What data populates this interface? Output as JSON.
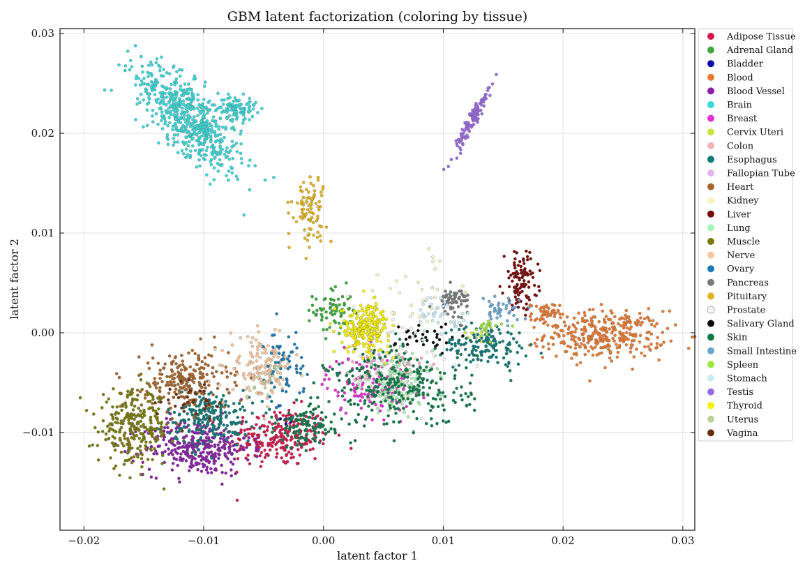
{
  "chart_data": {
    "type": "scatter",
    "title": "GBM latent factorization (coloring by tissue)",
    "xlabel": "latent factor 1",
    "ylabel": "latent factor 2",
    "xlim": [
      -0.022,
      0.031
    ],
    "ylim": [
      -0.0198,
      0.0305
    ],
    "xticks": [
      -0.02,
      -0.01,
      0.0,
      0.01,
      0.02,
      0.03
    ],
    "xtick_labels": [
      "−0.02",
      "−0.01",
      "0.00",
      "0.01",
      "0.02",
      "0.03"
    ],
    "yticks": [
      -0.01,
      0.0,
      0.01,
      0.02,
      0.03
    ],
    "ytick_labels": [
      "−0.01",
      "0.00",
      "0.01",
      "0.02",
      "0.03"
    ],
    "grid": true,
    "legend_position": "outside-right-top",
    "series": [
      {
        "name": "Adipose Tissue",
        "color": "#d6174b",
        "clusters": [
          {
            "cx": -0.0038,
            "cy": -0.0105,
            "sx": 0.0022,
            "sy": 0.0015,
            "n": 240
          }
        ]
      },
      {
        "name": "Adrenal Gland",
        "color": "#3aaa3a",
        "clusters": [
          {
            "cx": 0.0008,
            "cy": 0.0022,
            "sx": 0.0008,
            "sy": 0.0012,
            "n": 70
          }
        ]
      },
      {
        "name": "Bladder",
        "color": "#0a0aa8",
        "clusters": [
          {
            "cx": -0.0032,
            "cy": -0.0082,
            "sx": 0.0006,
            "sy": 0.0006,
            "n": 6
          }
        ]
      },
      {
        "name": "Blood",
        "color": "#e87a30",
        "clusters": [
          {
            "cx": 0.0235,
            "cy": -0.0002,
            "sx": 0.0025,
            "sy": 0.0012,
            "n": 330
          },
          {
            "cx": 0.0185,
            "cy": 0.0018,
            "sx": 0.0006,
            "sy": 0.0006,
            "n": 50
          }
        ]
      },
      {
        "name": "Blood Vessel",
        "color": "#8a1fa8",
        "clusters": [
          {
            "cx": -0.0105,
            "cy": -0.0115,
            "sx": 0.0022,
            "sy": 0.0014,
            "n": 330
          }
        ]
      },
      {
        "name": "Brain",
        "color": "#3ad8d8",
        "clusters": [
          {
            "cx": -0.0112,
            "cy": 0.0215,
            "sx": 0.0022,
            "sy": 0.0028,
            "n": 600,
            "rho": -0.75
          },
          {
            "cx": -0.0072,
            "cy": 0.0225,
            "sx": 0.0008,
            "sy": 0.0006,
            "n": 90
          }
        ]
      },
      {
        "name": "Breast",
        "color": "#e530d6",
        "clusters": [
          {
            "cx": 0.0038,
            "cy": -0.0052,
            "sx": 0.0018,
            "sy": 0.0015,
            "n": 130
          }
        ]
      },
      {
        "name": "Cervix Uteri",
        "color": "#c8e63a",
        "clusters": [
          {
            "cx": 0.0128,
            "cy": -0.0002,
            "sx": 0.0008,
            "sy": 0.0006,
            "n": 10
          }
        ]
      },
      {
        "name": "Colon",
        "color": "#f2b4bc",
        "clusters": [
          {
            "cx": 0.0055,
            "cy": -0.0035,
            "sx": 0.0015,
            "sy": 0.0012,
            "n": 45
          }
        ]
      },
      {
        "name": "Esophagus",
        "color": "#0e7a78",
        "clusters": [
          {
            "cx": -0.0095,
            "cy": -0.0085,
            "sx": 0.0018,
            "sy": 0.0014,
            "n": 220
          },
          {
            "cx": 0.0135,
            "cy": -0.0012,
            "sx": 0.0018,
            "sy": 0.001,
            "n": 140
          }
        ]
      },
      {
        "name": "Fallopian Tube",
        "color": "#e2b4f2",
        "clusters": [
          {
            "cx": 0.0045,
            "cy": -0.0025,
            "sx": 0.0005,
            "sy": 0.0005,
            "n": 6
          }
        ]
      },
      {
        "name": "Heart",
        "color": "#a8652a",
        "clusters": [
          {
            "cx": -0.0115,
            "cy": -0.0048,
            "sx": 0.0018,
            "sy": 0.0015,
            "n": 220
          }
        ]
      },
      {
        "name": "Kidney",
        "color": "#f8f4c0",
        "clusters": [
          {
            "cx": 0.0075,
            "cy": 0.0035,
            "sx": 0.0025,
            "sy": 0.0025,
            "n": 30
          }
        ]
      },
      {
        "name": "Liver",
        "color": "#7a0a0a",
        "clusters": [
          {
            "cx": 0.0165,
            "cy": 0.0052,
            "sx": 0.0007,
            "sy": 0.0014,
            "n": 110
          }
        ]
      },
      {
        "name": "Lung",
        "color": "#a8f2b4",
        "clusters": [
          {
            "cx": 0.0062,
            "cy": -0.0052,
            "sx": 0.0015,
            "sy": 0.0015,
            "n": 170
          }
        ]
      },
      {
        "name": "Muscle",
        "color": "#7a7a0a",
        "clusters": [
          {
            "cx": -0.0158,
            "cy": -0.0095,
            "sx": 0.0015,
            "sy": 0.0018,
            "n": 280
          }
        ]
      },
      {
        "name": "Nerve",
        "color": "#f6c8a0",
        "clusters": [
          {
            "cx": -0.0052,
            "cy": -0.0035,
            "sx": 0.0013,
            "sy": 0.0015,
            "n": 150
          }
        ]
      },
      {
        "name": "Ovary",
        "color": "#1a7ab8",
        "clusters": [
          {
            "cx": -0.0032,
            "cy": -0.0035,
            "sx": 0.0008,
            "sy": 0.0018,
            "n": 60
          }
        ]
      },
      {
        "name": "Pancreas",
        "color": "#7a7a7a",
        "clusters": [
          {
            "cx": 0.0108,
            "cy": 0.0032,
            "sx": 0.0007,
            "sy": 0.0007,
            "n": 65
          }
        ]
      },
      {
        "name": "Pituitary",
        "color": "#e2b41e",
        "clusters": [
          {
            "cx": -0.0012,
            "cy": 0.0125,
            "sx": 0.0007,
            "sy": 0.0016,
            "n": 90
          }
        ]
      },
      {
        "name": "Prostate",
        "color": "#f8f8f8",
        "clusters": [
          {
            "cx": 0.0065,
            "cy": -0.0005,
            "sx": 0.0025,
            "sy": 0.0025,
            "n": 40
          }
        ]
      },
      {
        "name": "Salivary Gland",
        "color": "#0a0a0a",
        "clusters": [
          {
            "cx": 0.0085,
            "cy": -0.0005,
            "sx": 0.0012,
            "sy": 0.0008,
            "n": 35
          }
        ]
      },
      {
        "name": "Skin",
        "color": "#0e7a48",
        "clusters": [
          {
            "cx": 0.0065,
            "cy": -0.0055,
            "sx": 0.003,
            "sy": 0.002,
            "n": 280
          },
          {
            "cx": -0.0015,
            "cy": -0.0095,
            "sx": 0.0012,
            "sy": 0.001,
            "n": 110
          }
        ]
      },
      {
        "name": "Small Intestine",
        "color": "#6aa8d2",
        "clusters": [
          {
            "cx": 0.0148,
            "cy": 0.0022,
            "sx": 0.0008,
            "sy": 0.0006,
            "n": 40
          }
        ]
      },
      {
        "name": "Spleen",
        "color": "#9ae63a",
        "clusters": [
          {
            "cx": 0.0135,
            "cy": 0.0005,
            "sx": 0.0007,
            "sy": 0.0005,
            "n": 20
          }
        ]
      },
      {
        "name": "Stomach",
        "color": "#c8ecf6",
        "clusters": [
          {
            "cx": 0.0098,
            "cy": 0.0018,
            "sx": 0.0012,
            "sy": 0.001,
            "n": 40
          }
        ]
      },
      {
        "name": "Testis",
        "color": "#9a6ae2",
        "clusters": [
          {
            "cx": 0.0125,
            "cy": 0.0215,
            "sx": 0.0008,
            "sy": 0.0018,
            "n": 110,
            "rho": 0.95
          }
        ]
      },
      {
        "name": "Thyroid",
        "color": "#f6f200",
        "clusters": [
          {
            "cx": 0.0035,
            "cy": 0.0005,
            "sx": 0.001,
            "sy": 0.0012,
            "n": 230
          }
        ]
      },
      {
        "name": "Uterus",
        "color": "#b8d29a",
        "clusters": [
          {
            "cx": -0.0045,
            "cy": -0.0045,
            "sx": 0.0008,
            "sy": 0.0008,
            "n": 12
          }
        ]
      },
      {
        "name": "Vagina",
        "color": "#6a2e0e",
        "clusters": [
          {
            "cx": -0.0105,
            "cy": -0.0065,
            "sx": 0.0015,
            "sy": 0.0012,
            "n": 35
          }
        ]
      }
    ]
  }
}
